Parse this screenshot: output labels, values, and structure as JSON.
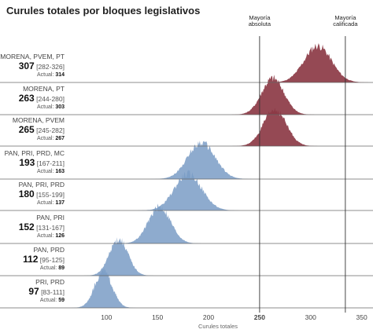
{
  "chart_data": {
    "type": "area",
    "title": "Curules totales por bloques legislativos",
    "xlabel": "Curules totales",
    "xlim": [
      62,
      358
    ],
    "x_ticks": [
      100,
      150,
      200,
      250,
      300,
      350
    ],
    "x_tick_bold": 250,
    "thresholds": [
      {
        "value": 250,
        "label_line1": "Mayoría",
        "label_line2": "absoluta"
      },
      {
        "value": 334,
        "label_line1": "Mayoría",
        "label_line2": "calificada"
      }
    ],
    "colors": {
      "majority": "#8c3a45",
      "minority": "#7a9cc6",
      "dark_minority": "#2f5f9a",
      "light_majority": "#c29098"
    },
    "series": [
      {
        "name": "MORENA, PVEM, PT",
        "median": "307",
        "range": "[282-326]",
        "actual_label": "Actual:",
        "actual": "314",
        "center": 307,
        "lo": 282,
        "hi": 326,
        "majority": true
      },
      {
        "name": "MORENA, PT",
        "median": "263",
        "range": "[244-280]",
        "actual_label": "Actual:",
        "actual": "303",
        "center": 263,
        "lo": 244,
        "hi": 280,
        "majority": true
      },
      {
        "name": "MORENA, PVEM",
        "median": "265",
        "range": "[245-282]",
        "actual_label": "Actual:",
        "actual": "267",
        "center": 265,
        "lo": 245,
        "hi": 282,
        "majority": true
      },
      {
        "name": "PAN, PRI, PRD, MC",
        "median": "193",
        "range": "[167-211]",
        "actual_label": "Actual:",
        "actual": "163",
        "center": 193,
        "lo": 167,
        "hi": 211,
        "majority": false
      },
      {
        "name": "PAN, PRI, PRD",
        "median": "180",
        "range": "[155-199]",
        "actual_label": "Actual:",
        "actual": "137",
        "center": 180,
        "lo": 155,
        "hi": 199,
        "majority": false
      },
      {
        "name": "PAN, PRI",
        "median": "152",
        "range": "[131-167]",
        "actual_label": "Actual:",
        "actual": "126",
        "center": 152,
        "lo": 131,
        "hi": 167,
        "majority": false
      },
      {
        "name": "PAN, PRD",
        "median": "112",
        "range": "[95-125]",
        "actual_label": "Actual:",
        "actual": "89",
        "center": 112,
        "lo": 95,
        "hi": 125,
        "majority": false
      },
      {
        "name": "PRI, PRD",
        "median": "97",
        "range": "[83-111]",
        "actual_label": "Actual:",
        "actual": "59",
        "center": 97,
        "lo": 83,
        "hi": 111,
        "majority": false
      }
    ]
  }
}
